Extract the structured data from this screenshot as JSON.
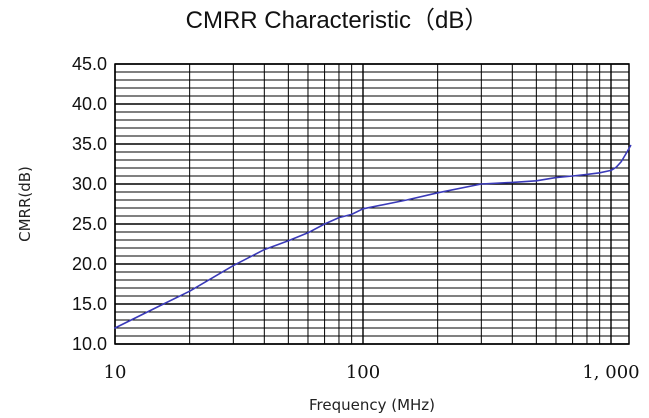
{
  "chart_data": {
    "type": "line",
    "title": "CMRR Characteristic（dB）",
    "xlabel": "Frequency (MHz)",
    "ylabel": "CMRR(dB)",
    "x_scale": "log",
    "xlim": [
      10,
      1200
    ],
    "ylim": [
      10,
      45
    ],
    "x_ticks": [
      {
        "value": 10,
        "label": "10"
      },
      {
        "value": 100,
        "label": "100"
      },
      {
        "value": 1000,
        "label": "1, 000"
      }
    ],
    "y_ticks": [
      {
        "value": 10,
        "label": "10.0"
      },
      {
        "value": 15,
        "label": "15.0"
      },
      {
        "value": 20,
        "label": "20.0"
      },
      {
        "value": 25,
        "label": "25.0"
      },
      {
        "value": 30,
        "label": "30.0"
      },
      {
        "value": 35,
        "label": "35.0"
      },
      {
        "value": 40,
        "label": "40.0"
      },
      {
        "value": 45,
        "label": "45.0"
      }
    ],
    "y_minor_step": 1,
    "grid": true,
    "line_color": "#3a3ab8",
    "series": [
      {
        "x": [
          10,
          15,
          20,
          30,
          40,
          50,
          60,
          70,
          80,
          90,
          100,
          150,
          200,
          300,
          400,
          500,
          600,
          700,
          800,
          900,
          1000,
          1050,
          1100,
          1150,
          1200
        ],
        "y": [
          12.0,
          14.7,
          16.6,
          19.8,
          21.8,
          22.9,
          23.9,
          25.0,
          25.8,
          26.2,
          26.9,
          28.0,
          28.9,
          30.0,
          30.2,
          30.4,
          30.8,
          31.0,
          31.2,
          31.4,
          31.7,
          32.1,
          32.8,
          33.8,
          34.8
        ]
      }
    ]
  }
}
